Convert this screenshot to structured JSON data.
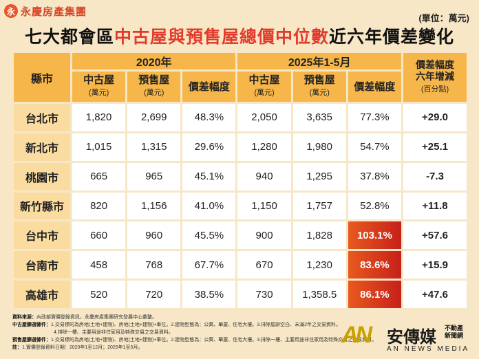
{
  "header": {
    "logo_mark": "永",
    "logo_text": "永慶房產集團",
    "unit": "(單位：萬元)",
    "title_pre": "七大都會區",
    "title_highlight": "中古屋與預售屋總價中位數",
    "title_post": "近六年價差變化"
  },
  "table": {
    "city_header": "縣市",
    "year_2020": "2020年",
    "year_2025": "2025年1-5月",
    "change_header_line1": "價差幅度",
    "change_header_line2": "六年增減",
    "change_header_unit": "(百分點)",
    "col_used": "中古屋",
    "col_presale": "預售屋",
    "col_unit": "(萬元)",
    "col_gap": "價差幅度",
    "rows": [
      {
        "city": "台北市",
        "u2020": "1,820",
        "p2020": "2,699",
        "g2020": "48.3%",
        "u2025": "2,050",
        "p2025": "3,635",
        "g2025": "77.3%",
        "change": "+29.0"
      },
      {
        "city": "新北市",
        "u2020": "1,015",
        "p2020": "1,315",
        "g2020": "29.6%",
        "u2025": "1,280",
        "p2025": "1,980",
        "g2025": "54.7%",
        "change": "+25.1"
      },
      {
        "city": "桃園市",
        "u2020": "665",
        "p2020": "965",
        "g2020": "45.1%",
        "u2025": "940",
        "p2025": "1,295",
        "g2025": "37.8%",
        "change": "-7.3"
      },
      {
        "city": "新竹縣市",
        "u2020": "820",
        "p2020": "1,156",
        "g2020": "41.0%",
        "u2025": "1,150",
        "p2025": "1,757",
        "g2025": "52.8%",
        "change": "+11.8"
      },
      {
        "city": "台中市",
        "u2020": "660",
        "p2020": "960",
        "g2020": "45.5%",
        "u2025": "900",
        "p2025": "1,828",
        "g2025": "103.1%",
        "change": "+57.6"
      },
      {
        "city": "台南市",
        "u2020": "458",
        "p2020": "768",
        "g2020": "67.7%",
        "u2025": "670",
        "p2025": "1,230",
        "g2025": "83.6%",
        "change": "+15.9"
      },
      {
        "city": "高雄市",
        "u2020": "520",
        "p2020": "720",
        "g2020": "38.5%",
        "u2025": "730",
        "p2025": "1,358.5",
        "g2025": "86.1%",
        "change": "+47.6"
      }
    ]
  },
  "notes": {
    "line1_label": "資料來源：",
    "line1": "內政部實價登錄資訊，永慶房產集團研究發展中心彙整。",
    "line2_label": "中古屋篩選條件：",
    "line2": "1.交易標的為房地(土地+建物)、房地(土地+建物)+車位。2.建物型態為：公寓、華廈、住宅大樓。3.排除屋齡空白、未滿2年之交易資料。",
    "line3": "4.排除一樓、主要用途非住家用及特殊交易之交易資料。",
    "line4_label": "預售屋篩選條件：",
    "line4": "1.交易標的為房地(土地+建物)、房地(土地+建物)+車位。2.建物型態為：公寓、華廈、住宅大樓。3.排除一樓、主要用途非住家用及特殊交易之交易資料。",
    "line5_label": "註：",
    "line5": "1.實價登錄資料日期：2020年1至12月；2025年1至5月。"
  },
  "brand": {
    "mark": "AN",
    "name": "安傳媒",
    "sub1": "不動產",
    "sub2": "新聞網",
    "en": "AN NEWS MEDIA"
  }
}
